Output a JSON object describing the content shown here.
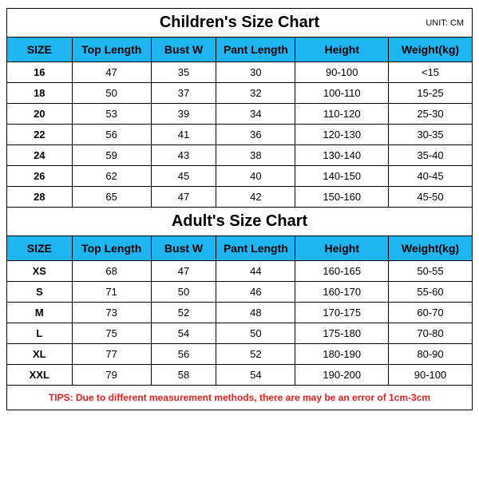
{
  "colors": {
    "header_bg": "#1fb4f2",
    "border": "#000000",
    "tips_color": "#e02020",
    "background": "#ffffff"
  },
  "children": {
    "title": "Children's Size Chart",
    "unit": "UNIT: CM",
    "headers": [
      "SIZE",
      "Top Length",
      "Bust W",
      "Pant Length",
      "Height",
      "Weight(kg)"
    ],
    "rows": [
      [
        "16",
        "47",
        "35",
        "30",
        "90-100",
        "<15"
      ],
      [
        "18",
        "50",
        "37",
        "32",
        "100-110",
        "15-25"
      ],
      [
        "20",
        "53",
        "39",
        "34",
        "110-120",
        "25-30"
      ],
      [
        "22",
        "56",
        "41",
        "36",
        "120-130",
        "30-35"
      ],
      [
        "24",
        "59",
        "43",
        "38",
        "130-140",
        "35-40"
      ],
      [
        "26",
        "62",
        "45",
        "40",
        "140-150",
        "40-45"
      ],
      [
        "28",
        "65",
        "47",
        "42",
        "150-160",
        "45-50"
      ]
    ]
  },
  "adult": {
    "title": "Adult's Size Chart",
    "headers": [
      "SIZE",
      "Top Length",
      "Bust W",
      "Pant Length",
      "Height",
      "Weight(kg)"
    ],
    "rows": [
      [
        "XS",
        "68",
        "47",
        "44",
        "160-165",
        "50-55"
      ],
      [
        "S",
        "71",
        "50",
        "46",
        "160-170",
        "55-60"
      ],
      [
        "M",
        "73",
        "52",
        "48",
        "170-175",
        "60-70"
      ],
      [
        "L",
        "75",
        "54",
        "50",
        "175-180",
        "70-80"
      ],
      [
        "XL",
        "77",
        "56",
        "52",
        "180-190",
        "80-90"
      ],
      [
        "XXL",
        "79",
        "58",
        "54",
        "190-200",
        "90-100"
      ]
    ]
  },
  "tips": "TIPS: Due to different measurement methods, there are may be an error of 1cm-3cm"
}
